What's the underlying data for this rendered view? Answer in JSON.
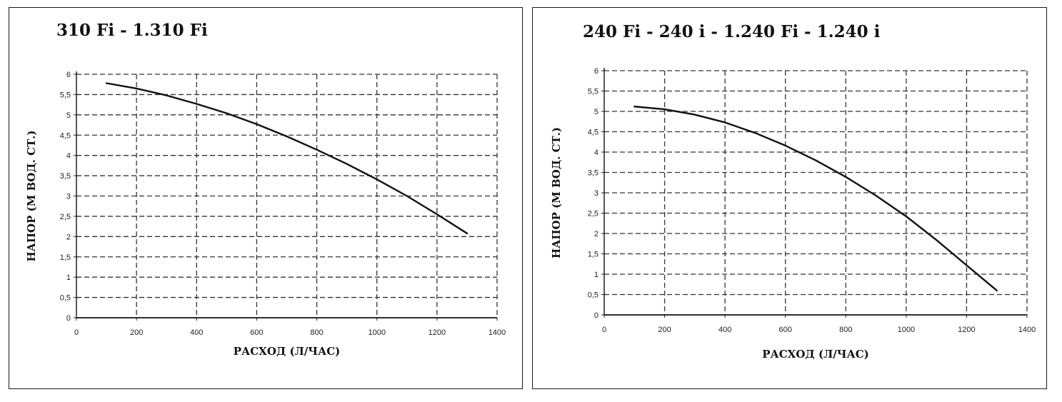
{
  "chart_data": [
    {
      "type": "line",
      "title": "310 Fi - 1.310 Fi",
      "xlabel": "РАСХОД (Л/ЧАС)",
      "ylabel": "НАПОР (М ВОД. СТ.)",
      "xlim": [
        0,
        1400
      ],
      "ylim": [
        0,
        6
      ],
      "x_ticks": [
        "0",
        "200",
        "400",
        "600",
        "800",
        "1000",
        "1200",
        "1400"
      ],
      "y_ticks": [
        "0",
        "0,5",
        "1",
        "1,5",
        "2",
        "2,5",
        "3",
        "3,5",
        "4",
        "4,5",
        "5",
        "5,5",
        "6"
      ],
      "grid": true,
      "series": [
        {
          "x": [
            100,
            200,
            300,
            400,
            500,
            600,
            700,
            800,
            900,
            1000,
            1100,
            1200,
            1300
          ],
          "y": [
            5.78,
            5.65,
            5.48,
            5.27,
            5.04,
            4.77,
            4.47,
            4.14,
            3.79,
            3.41,
            3.0,
            2.55,
            2.08
          ]
        }
      ]
    },
    {
      "type": "line",
      "title": "240 Fi - 240 i - 1.240 Fi - 1.240 i",
      "xlabel": "РАСХОД (Л/ЧАС)",
      "ylabel": "НАПОР (М ВОД. СТ.)",
      "xlim": [
        0,
        1400
      ],
      "ylim": [
        0,
        6
      ],
      "x_ticks": [
        "0",
        "200",
        "400",
        "600",
        "800",
        "1000",
        "1200",
        "1400"
      ],
      "y_ticks": [
        "0",
        "0,5",
        "1",
        "1,5",
        "2",
        "2,5",
        "3",
        "3,5",
        "4",
        "4,5",
        "5",
        "5,5",
        "6"
      ],
      "grid": true,
      "series": [
        {
          "x": [
            100,
            200,
            300,
            400,
            500,
            600,
            700,
            800,
            900,
            1000,
            1100,
            1200,
            1300
          ],
          "y": [
            5.12,
            5.05,
            4.92,
            4.73,
            4.47,
            4.16,
            3.8,
            3.39,
            2.93,
            2.42,
            1.84,
            1.22,
            0.6
          ]
        }
      ]
    }
  ]
}
